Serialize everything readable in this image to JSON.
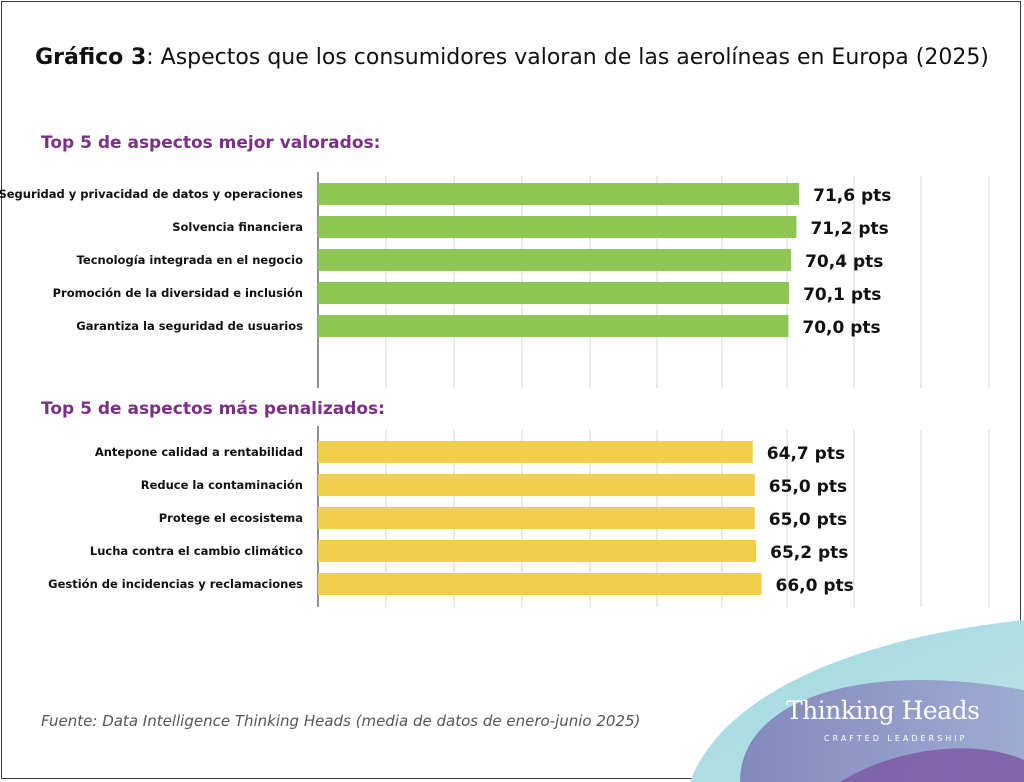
{
  "title": {
    "bold": "Gráfico 3",
    "rest": ": Aspectos que los consumidores valoran de las aerolíneas en Europa (2025)"
  },
  "colors": {
    "section_label": "#7b2f86",
    "bar_green": "#8dc653",
    "bar_yellow": "#f1cf4c",
    "grid": "#d4d4d4",
    "axis": "#222222"
  },
  "chart_data": [
    {
      "type": "bar",
      "orientation": "horizontal",
      "title": "Top 5 de aspectos mejor valorados:",
      "categories": [
        "Seguridad y privacidad de datos y operaciones",
        "Solvencia financiera",
        "Tecnología integrada en el negocio",
        "Promoción de la diversidad e inclusión",
        "Garantiza la seguridad de usuarios"
      ],
      "values": [
        71.6,
        71.2,
        70.4,
        70.1,
        70.0
      ],
      "data_labels": [
        "71,6 pts",
        "71,2 pts",
        "70,4 pts",
        "70,1 pts",
        "70,0 pts"
      ],
      "color": "#8dc653"
    },
    {
      "type": "bar",
      "orientation": "horizontal",
      "title": "Top 5 de aspectos más penalizados:",
      "categories": [
        "Antepone calidad a rentabilidad",
        "Reduce la contaminación",
        "Protege el ecosistema",
        "Lucha contra el cambio climático",
        "Gestión de incidencias y reclamaciones"
      ],
      "values": [
        64.7,
        65.0,
        65.0,
        65.2,
        66.0
      ],
      "data_labels": [
        "64,7 pts",
        "65,0 pts",
        "65,0 pts",
        "65,2 pts",
        "66,0 pts"
      ],
      "color": "#f1cf4c"
    }
  ],
  "source": "Fuente: Data Intelligence Thinking Heads (media de datos de enero-junio 2025)",
  "logo": {
    "name": "Thinking Heads",
    "tagline": "CRAFTED LEADERSHIP"
  }
}
